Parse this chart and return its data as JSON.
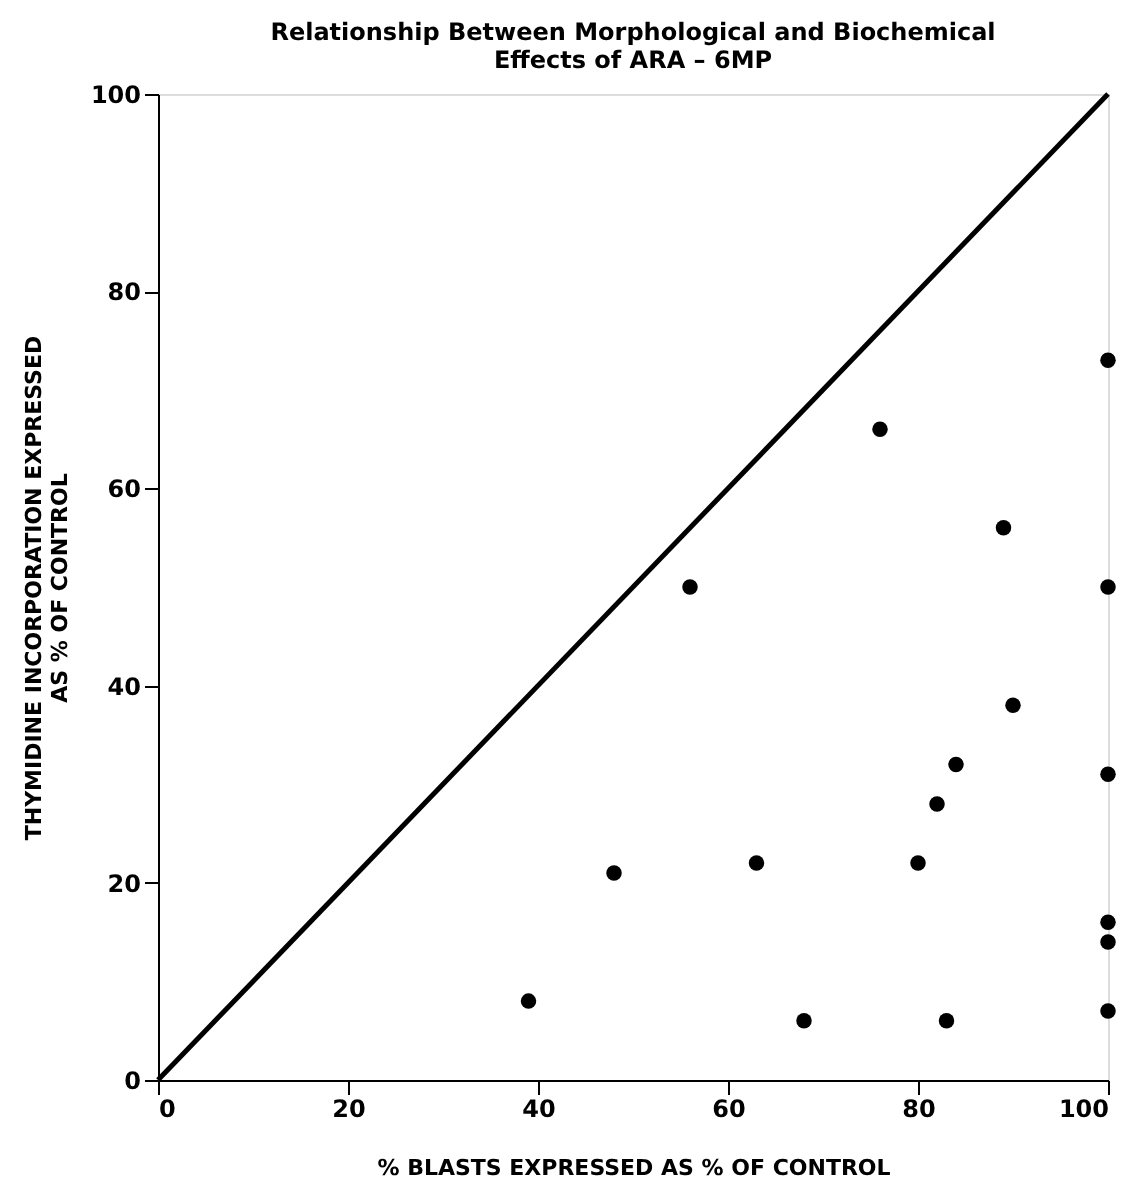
{
  "chart_data": {
    "type": "scatter",
    "title": "Relationship Between Morphological and Biochemical\nEffects of ARA – 6MP",
    "xlabel": "% BLASTS EXPRESSED AS % OF CONTROL",
    "ylabel": "THYMIDINE INCORPORATION EXPRESSED\nAS % OF CONTROL",
    "xlim": [
      0,
      100
    ],
    "ylim": [
      0,
      100
    ],
    "xticks": [
      0,
      20,
      40,
      60,
      80,
      100
    ],
    "yticks": [
      0,
      20,
      40,
      60,
      80,
      100
    ],
    "grid": false,
    "series": [
      {
        "color": "#000000",
        "marker": "circle",
        "x": [
          39,
          48,
          56,
          63,
          68,
          76,
          80,
          82,
          83,
          84,
          89,
          90,
          100,
          100,
          100,
          100,
          100,
          100
        ],
        "values": [
          8,
          21,
          50,
          22,
          6,
          66,
          22,
          28,
          6,
          32,
          56,
          38,
          73,
          50,
          31,
          16,
          14,
          7
        ]
      },
      {
        "type": "line",
        "color": "#000000",
        "x": [
          0,
          100
        ],
        "values": [
          0,
          100
        ],
        "marker": "none",
        "line_style": "solid"
      }
    ]
  }
}
